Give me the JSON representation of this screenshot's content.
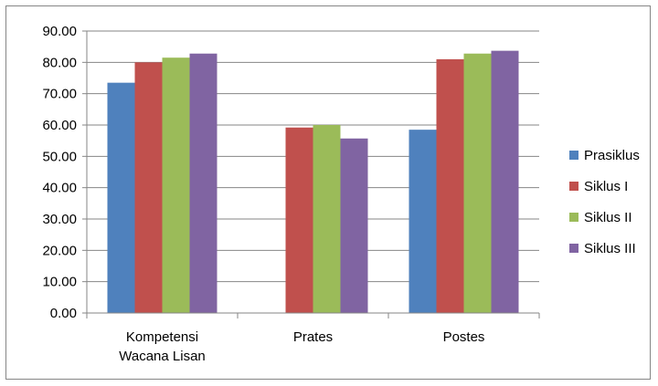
{
  "chart_data": {
    "type": "bar",
    "categories": [
      "Kompetensi\nWacana Lisan",
      "Prates",
      "Postes"
    ],
    "series": [
      {
        "name": "Prasiklus",
        "color": "#4f81bd",
        "values": [
          73.5,
          null,
          58.5
        ]
      },
      {
        "name": "Siklus I",
        "color": "#c0504d",
        "values": [
          80.0,
          59.2,
          81.0
        ]
      },
      {
        "name": "Siklus II",
        "color": "#9bbb59",
        "values": [
          81.5,
          60.0,
          82.8
        ]
      },
      {
        "name": "Siklus III",
        "color": "#8064a2",
        "values": [
          82.8,
          55.7,
          83.7
        ]
      }
    ],
    "y_ticks": [
      "0.00",
      "10.00",
      "20.00",
      "30.00",
      "40.00",
      "50.00",
      "60.00",
      "70.00",
      "80.00",
      "90.00"
    ],
    "ylim": [
      0,
      90
    ],
    "grid": true,
    "legend_position": "right"
  }
}
